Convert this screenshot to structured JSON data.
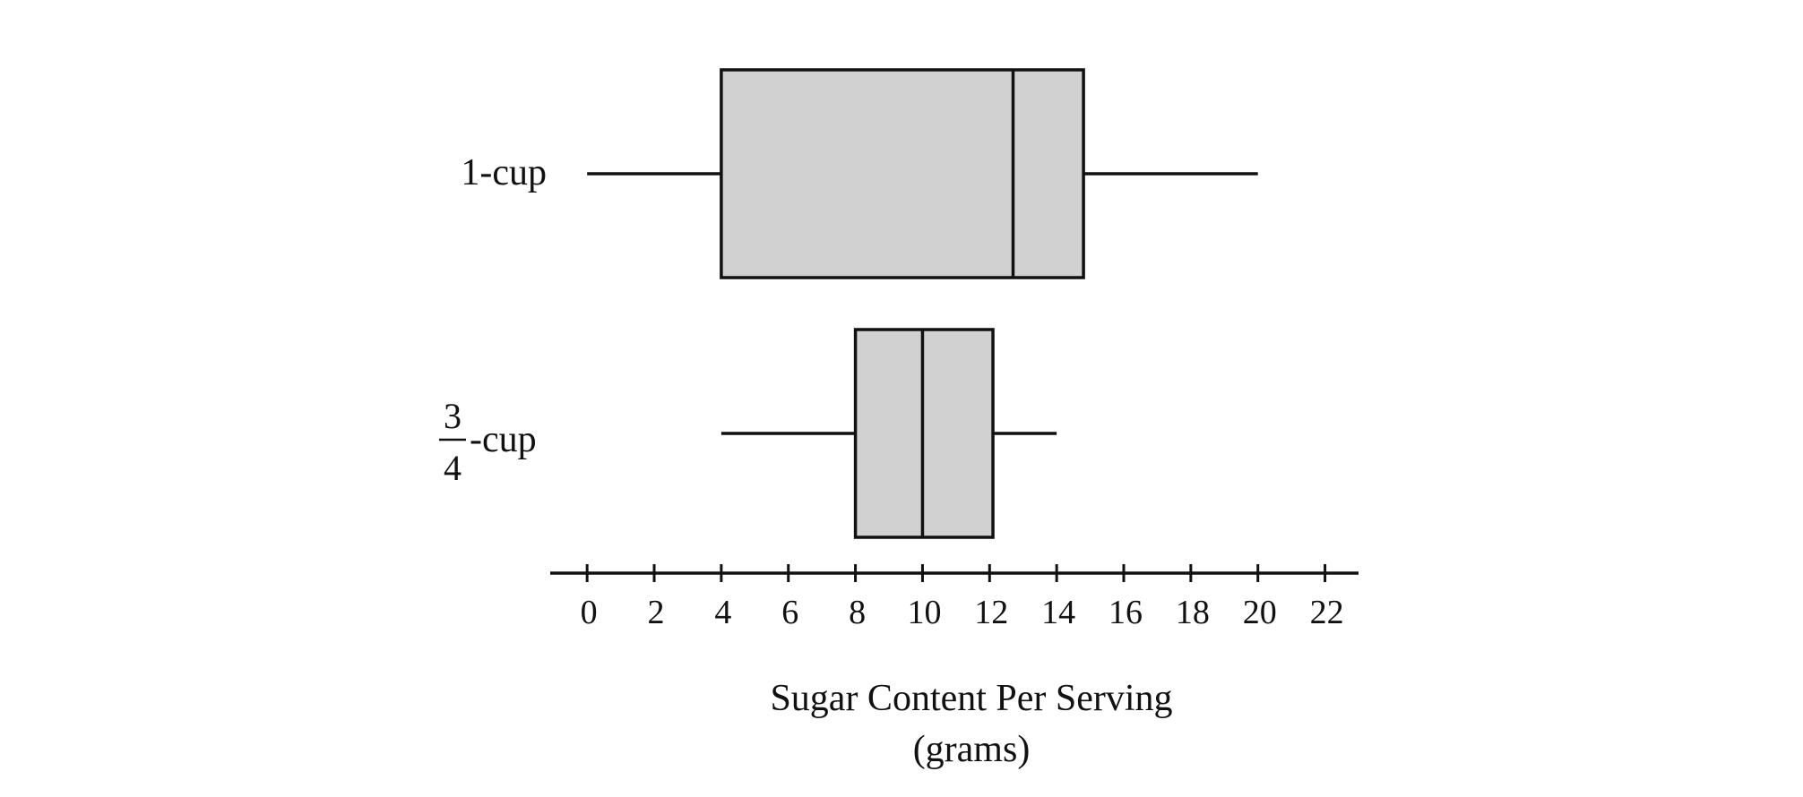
{
  "chart_data": {
    "type": "boxplot",
    "xlabel_line1": "Sugar Content Per Serving",
    "xlabel_line2": "(grams)",
    "xlim": [
      -1.1,
      23
    ],
    "ticks": [
      0,
      2,
      4,
      6,
      8,
      10,
      12,
      14,
      16,
      18,
      20,
      22
    ],
    "tick_labels": [
      "0",
      "2",
      "4",
      "6",
      "8",
      "10",
      "12",
      "14",
      "16",
      "18",
      "20",
      "22"
    ],
    "series": [
      {
        "label": "1-cup",
        "min": 0,
        "q1": 4,
        "median": 12.7,
        "q3": 14.8,
        "max": 20
      },
      {
        "label_fraction_numerator": "3",
        "label_fraction_denominator": "4",
        "label_suffix": "-cup",
        "min": 4,
        "q1": 8,
        "median": 10,
        "q3": 12.1,
        "max": 14
      }
    ],
    "box_fill": "#d1d1d1",
    "line_color": "#111111"
  }
}
